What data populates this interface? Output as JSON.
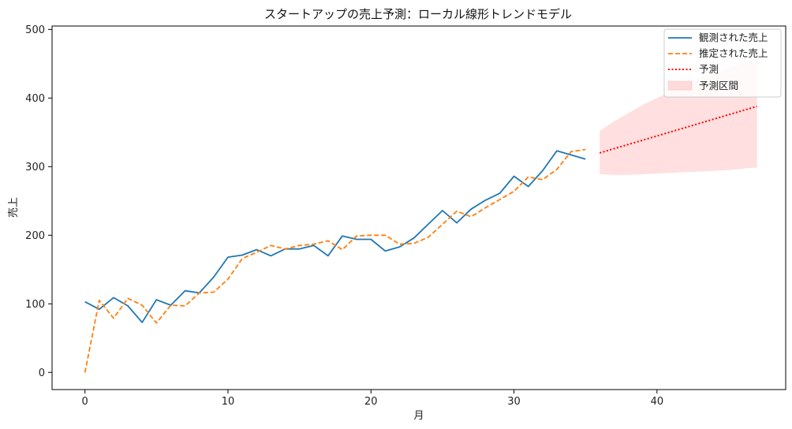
{
  "chart_data": {
    "type": "line",
    "title": "スタートアップの売上予測：ローカル線形トレンドモデル",
    "xlabel": "月",
    "ylabel": "売上",
    "xlim": [
      -2.3,
      49
    ],
    "ylim": [
      -25,
      505
    ],
    "xticks": [
      0,
      10,
      20,
      30,
      40
    ],
    "yticks": [
      0,
      100,
      200,
      300,
      400,
      500
    ],
    "grid": false,
    "legend_position": "top-right",
    "series": [
      {
        "name": "観測された売上",
        "color": "#1f77b4",
        "style": "solid",
        "x": [
          0,
          1,
          2,
          3,
          4,
          5,
          6,
          7,
          8,
          9,
          10,
          11,
          12,
          13,
          14,
          15,
          16,
          17,
          18,
          19,
          20,
          21,
          22,
          23,
          24,
          25,
          26,
          27,
          28,
          29,
          30,
          31,
          32,
          33,
          34,
          35
        ],
        "y": [
          103,
          92,
          109,
          97,
          73,
          106,
          98,
          119,
          116,
          139,
          168,
          171,
          179,
          170,
          180,
          180,
          185,
          170,
          199,
          194,
          194,
          177,
          183,
          196,
          216,
          236,
          218,
          238,
          251,
          261,
          286,
          271,
          294,
          323,
          317,
          311
        ]
      },
      {
        "name": "推定された売上",
        "color": "#ff7f0e",
        "style": "dashed",
        "x": [
          0,
          1,
          2,
          3,
          4,
          5,
          6,
          7,
          8,
          9,
          10,
          11,
          12,
          13,
          14,
          15,
          16,
          17,
          18,
          19,
          20,
          21,
          22,
          23,
          24,
          25,
          26,
          27,
          28,
          29,
          30,
          31,
          32,
          33,
          34,
          35
        ],
        "y": [
          0,
          105,
          79,
          108,
          98,
          72,
          98,
          97,
          116,
          117,
          136,
          166,
          175,
          185,
          180,
          185,
          187,
          192,
          179,
          199,
          200,
          200,
          187,
          188,
          197,
          216,
          235,
          227,
          240,
          252,
          264,
          285,
          281,
          296,
          322,
          325
        ]
      },
      {
        "name": "予測",
        "color": "#ff0000",
        "style": "dotted",
        "x": [
          36,
          47
        ],
        "y": [
          320,
          388
        ]
      }
    ],
    "interval": {
      "name": "予測区間",
      "color": "#ffc0c0",
      "x": [
        36,
        37,
        38,
        39,
        40,
        41,
        42,
        43,
        44,
        45,
        46,
        47
      ],
      "lower": [
        289,
        288,
        288,
        289,
        290,
        291,
        292,
        293,
        294,
        295,
        297,
        299
      ],
      "upper": [
        352,
        366,
        378,
        390,
        400,
        410,
        420,
        428,
        436,
        444,
        452,
        458
      ]
    }
  }
}
